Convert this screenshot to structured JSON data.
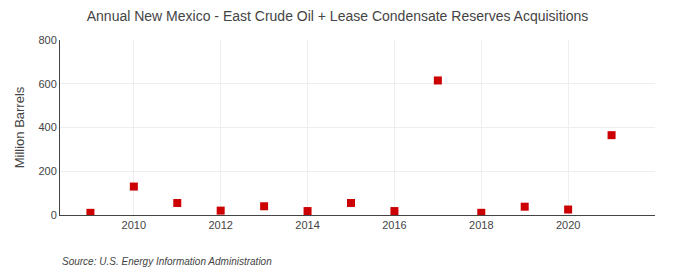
{
  "chart_data": {
    "type": "scatter",
    "title": "Annual New Mexico - East Crude Oil + Lease Condensate Reserves Acquisitions",
    "ylabel": "Million Barrels",
    "source": "Source: U.S. Energy Information Administration",
    "x": [
      2009,
      2010,
      2011,
      2012,
      2013,
      2014,
      2015,
      2016,
      2017,
      2018,
      2019,
      2020,
      2021
    ],
    "values": [
      10,
      130,
      55,
      20,
      40,
      18,
      55,
      18,
      615,
      10,
      38,
      25,
      365
    ],
    "color": "#cc0000",
    "marker": "square",
    "xlim": [
      2008.3,
      2022.0
    ],
    "xticks": [
      2010,
      2012,
      2014,
      2016,
      2018,
      2020
    ],
    "ylim": [
      0,
      800
    ],
    "yticks": [
      0,
      200,
      400,
      600,
      800
    ],
    "grid": true
  }
}
